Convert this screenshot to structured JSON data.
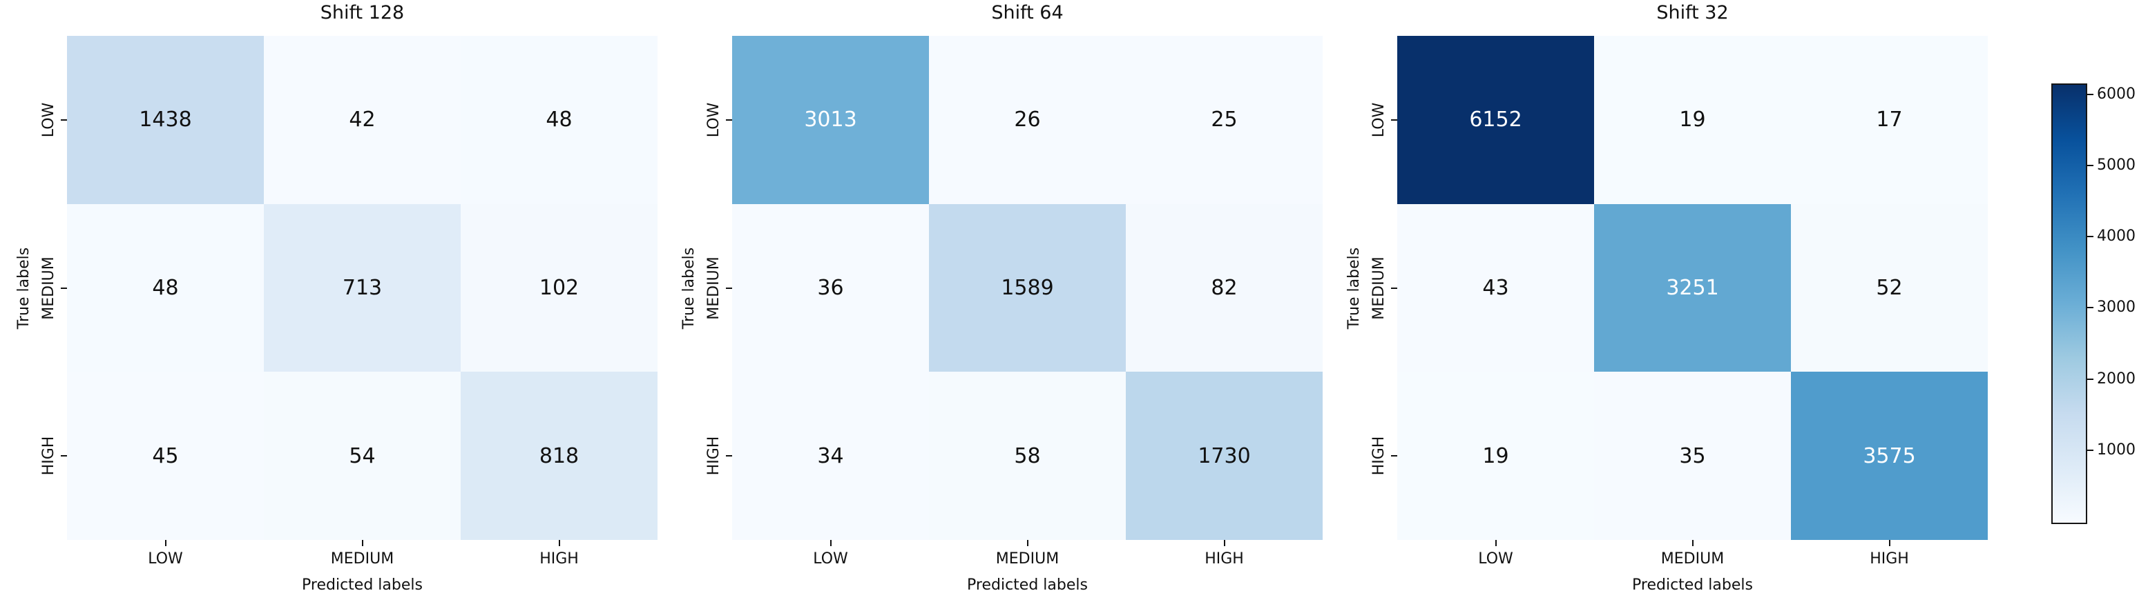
{
  "figure": {
    "background": "#ffffff",
    "text_color": "#111111",
    "colormap": {
      "name": "Blues",
      "stops": [
        "#f7fbff",
        "#deebf7",
        "#c6dbef",
        "#9ecae1",
        "#6baed6",
        "#4292c6",
        "#2171b5",
        "#08519c",
        "#08306b"
      ]
    },
    "colorbar": {
      "vmin": 0,
      "vmax": 6152,
      "ticks": [
        1000,
        2000,
        3000,
        4000,
        5000,
        6000
      ]
    },
    "annotation_text_dark": "#111111",
    "annotation_text_light": "#ffffff"
  },
  "chart_data": [
    {
      "type": "heatmap",
      "title": "Shift 128",
      "xlabel": "Predicted labels",
      "ylabel": "True labels",
      "x_tick_labels": [
        "LOW",
        "MEDIUM",
        "HIGH"
      ],
      "y_tick_labels": [
        "LOW",
        "MEDIUM",
        "HIGH"
      ],
      "rows": [
        [
          1438,
          42,
          48
        ],
        [
          48,
          713,
          102
        ],
        [
          45,
          54,
          818
        ]
      ]
    },
    {
      "type": "heatmap",
      "title": "Shift 64",
      "xlabel": "Predicted labels",
      "ylabel": "True labels",
      "x_tick_labels": [
        "LOW",
        "MEDIUM",
        "HIGH"
      ],
      "y_tick_labels": [
        "LOW",
        "MEDIUM",
        "HIGH"
      ],
      "rows": [
        [
          3013,
          26,
          25
        ],
        [
          36,
          1589,
          82
        ],
        [
          34,
          58,
          1730
        ]
      ]
    },
    {
      "type": "heatmap",
      "title": "Shift 32",
      "xlabel": "Predicted labels",
      "ylabel": "True labels",
      "x_tick_labels": [
        "LOW",
        "MEDIUM",
        "HIGH"
      ],
      "y_tick_labels": [
        "LOW",
        "MEDIUM",
        "HIGH"
      ],
      "rows": [
        [
          6152,
          19,
          17
        ],
        [
          43,
          3251,
          52
        ],
        [
          19,
          35,
          3575
        ]
      ]
    }
  ]
}
